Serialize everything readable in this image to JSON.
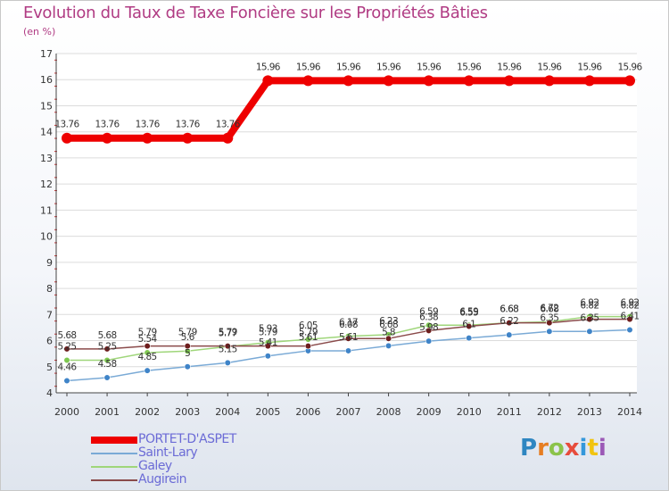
{
  "header": {
    "title": "Evolution du Taux de Taxe Foncière sur les Propriétés Bâties",
    "unit_label": "(en %)"
  },
  "logo": {
    "text": "Proxiti",
    "colors": [
      "#2e86c1",
      "#e67e22",
      "#8bc34a",
      "#e74c3c",
      "#3498db",
      "#f1c40f",
      "#9b59b6"
    ]
  },
  "chart_data": {
    "type": "line",
    "title": "Evolution du Taux de Taxe Foncière sur les Propriétés Bâties",
    "ylabel": "(en %)",
    "xlabel": "",
    "ylim": [
      4,
      17
    ],
    "yticks": [
      "4",
      "5",
      "6",
      "7",
      "8",
      "9",
      "10",
      "11",
      "12",
      "13",
      "14",
      "15",
      "16",
      "17"
    ],
    "categories": [
      "2000",
      "2001",
      "2002",
      "2003",
      "2004",
      "2005",
      "2006",
      "2007",
      "2008",
      "2009",
      "2010",
      "2011",
      "2012",
      "2013",
      "2014"
    ],
    "legend_position": "bottom-left",
    "series": [
      {
        "name": "PORTET-D'ASPET",
        "color": "#ee0000",
        "marker": "#ee0000",
        "line_width": 8,
        "marker_radius": 6,
        "values": [
          13.76,
          13.76,
          13.76,
          13.76,
          13.76,
          15.96,
          15.96,
          15.96,
          15.96,
          15.96,
          15.96,
          15.96,
          15.96,
          15.96,
          15.96
        ],
        "labels": [
          "13.76",
          "13.76",
          "13.76",
          "13.76",
          "13.76",
          "15.96",
          "15.96",
          "15.96",
          "15.96",
          "15.96",
          "15.96",
          "15.96",
          "15.96",
          "15.96",
          "15.96"
        ]
      },
      {
        "name": "Saint-Lary",
        "color": "#7aaad6",
        "marker": "#3f84c8",
        "line_width": 1.5,
        "marker_radius": 3.3,
        "values": [
          4.46,
          4.58,
          4.85,
          5.0,
          5.15,
          5.41,
          5.61,
          5.61,
          5.8,
          5.98,
          6.1,
          6.22,
          6.35,
          6.35,
          6.41
        ],
        "labels": [
          "4.46",
          "4.58",
          "4.85",
          "5",
          "5.15",
          "5.41",
          "5.61",
          "5.61",
          "5.8",
          "5.98",
          "6.1",
          "6.22",
          "6.35",
          "6.35",
          "6.41"
        ]
      },
      {
        "name": "Galey",
        "color": "#9fd67a",
        "marker": "#7ec850",
        "line_width": 1.5,
        "marker_radius": 3.3,
        "values": [
          5.25,
          5.25,
          5.54,
          5.6,
          5.77,
          5.93,
          6.05,
          6.17,
          6.23,
          6.59,
          6.59,
          6.68,
          6.72,
          6.92,
          6.92
        ],
        "labels": [
          "5.25",
          "5.25",
          "5.54",
          "5.6",
          "5.77",
          "5.93",
          "6.05",
          "6.17",
          "6.23",
          "6.59",
          "6.59",
          "6.68",
          "6.72",
          "6.92",
          "6.92"
        ]
      },
      {
        "name": "Augirein",
        "color": "#8a4a4a",
        "marker": "#6e1e1e",
        "line_width": 1.5,
        "marker_radius": 3.3,
        "values": [
          5.68,
          5.68,
          5.79,
          5.79,
          5.79,
          5.79,
          5.79,
          6.08,
          6.08,
          6.38,
          6.55,
          6.68,
          6.68,
          6.82,
          6.82
        ],
        "labels": [
          "5.68",
          "5.68",
          "5.79",
          "5.79",
          "5.79",
          "5.79",
          "5.79",
          "6.08",
          "6.08",
          "6.38",
          "6.55",
          "6.68",
          "6.68",
          "6.82",
          "6.82"
        ]
      }
    ]
  }
}
